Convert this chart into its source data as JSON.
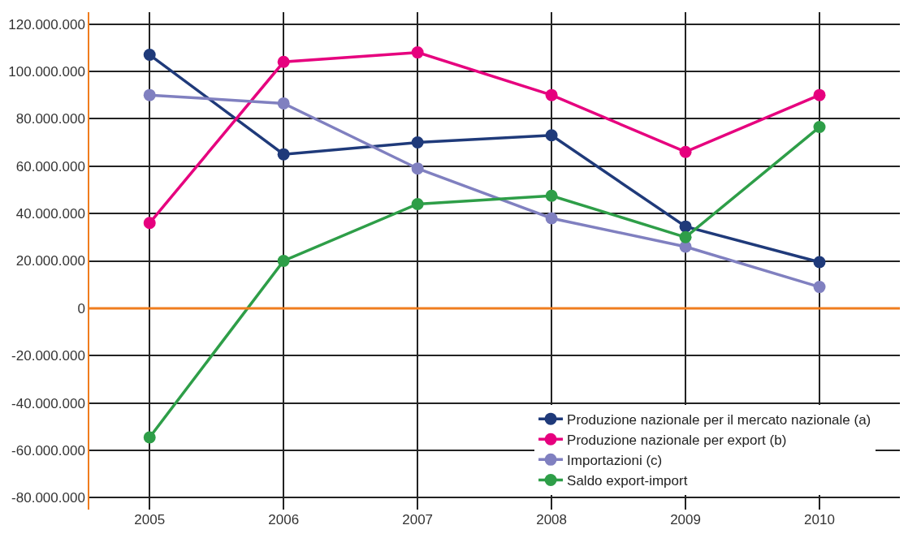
{
  "chart_data": {
    "type": "line",
    "x": [
      2005,
      2006,
      2007,
      2008,
      2009,
      2010
    ],
    "series": [
      {
        "name": "Produzione nazionale per il mercato nazionale (a)",
        "color": "#1f3a7a",
        "values": [
          107000000,
          65000000,
          70000000,
          73000000,
          34500000,
          19500000
        ]
      },
      {
        "name": "Produzione nazionale per export (b)",
        "color": "#e6007e",
        "values": [
          36000000,
          104000000,
          108000000,
          90000000,
          66000000,
          90000000
        ]
      },
      {
        "name": "Importazioni (c)",
        "color": "#8080c0",
        "values": [
          90000000,
          86500000,
          59000000,
          38000000,
          26000000,
          9000000
        ]
      },
      {
        "name": "Saldo export-import",
        "color": "#2e9e48",
        "values": [
          -54500000,
          20000000,
          44000000,
          47500000,
          30000000,
          76500000
        ]
      }
    ],
    "xlim": [
      2004.55,
      2010.6
    ],
    "xticks": [
      2005,
      2006,
      2007,
      2008,
      2009,
      2010
    ],
    "ylim": [
      -85000000,
      125000000
    ],
    "yticks": [
      {
        "value": 120000000,
        "label": "120.000.000"
      },
      {
        "value": 100000000,
        "label": "100.000.000"
      },
      {
        "value": 80000000,
        "label": "80.000.000"
      },
      {
        "value": 60000000,
        "label": "60.000.000"
      },
      {
        "value": 40000000,
        "label": "40.000.000"
      },
      {
        "value": 20000000,
        "label": "20.000.000"
      },
      {
        "value": 0,
        "label": "0"
      },
      {
        "value": -20000000,
        "label": "-20.000.000"
      },
      {
        "value": -40000000,
        "label": "-40.000.000"
      },
      {
        "value": -60000000,
        "label": "-60.000.000"
      },
      {
        "value": -80000000,
        "label": "-80.000.000"
      }
    ],
    "ref_lines": [
      {
        "axis": "y",
        "value": 0,
        "color": "#f07d1e"
      }
    ],
    "grid": true,
    "legend": "bottom right",
    "marker": "circle",
    "line_style": "solid"
  }
}
